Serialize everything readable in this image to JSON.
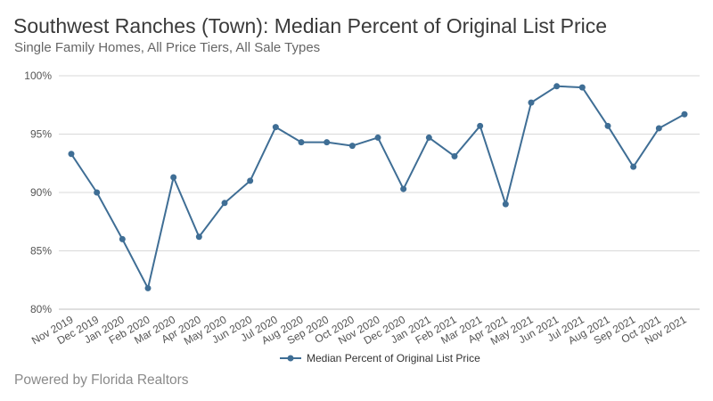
{
  "header": {
    "title": "Southwest Ranches (Town): Median Percent of Original List Price",
    "subtitle": "Single Family Homes, All Price Tiers, All Sale Types"
  },
  "footer": {
    "text": "Powered by Florida Realtors"
  },
  "colors": {
    "series": "#3f6e95",
    "grid": "#d9d9d9",
    "axis": "#bfbfbf"
  },
  "chart_data": {
    "type": "line",
    "title": "Southwest Ranches (Town): Median Percent of Original List Price",
    "xlabel": "",
    "ylabel": "",
    "ylim": [
      80,
      100
    ],
    "yticks": [
      80,
      85,
      90,
      95,
      100
    ],
    "ytick_labels": [
      "80%",
      "85%",
      "90%",
      "95%",
      "100%"
    ],
    "grid": true,
    "legend_position": "bottom-center",
    "categories": [
      "Nov 2019",
      "Dec 2019",
      "Jan 2020",
      "Feb 2020",
      "Mar 2020",
      "Apr 2020",
      "May 2020",
      "Jun 2020",
      "Jul 2020",
      "Aug 2020",
      "Sep 2020",
      "Oct 2020",
      "Nov 2020",
      "Dec 2020",
      "Jan 2021",
      "Feb 2021",
      "Mar 2021",
      "Apr 2021",
      "May 2021",
      "Jun 2021",
      "Jul 2021",
      "Aug 2021",
      "Sep 2021",
      "Oct 2021",
      "Nov 2021"
    ],
    "series": [
      {
        "name": "Median Percent of Original List Price",
        "values": [
          93.3,
          90.0,
          86.0,
          81.8,
          91.3,
          86.2,
          89.1,
          91.0,
          95.6,
          94.3,
          94.3,
          94.0,
          94.7,
          90.3,
          94.7,
          93.1,
          95.7,
          89.0,
          97.7,
          99.1,
          99.0,
          95.7,
          92.2,
          95.5,
          96.7
        ]
      }
    ]
  }
}
